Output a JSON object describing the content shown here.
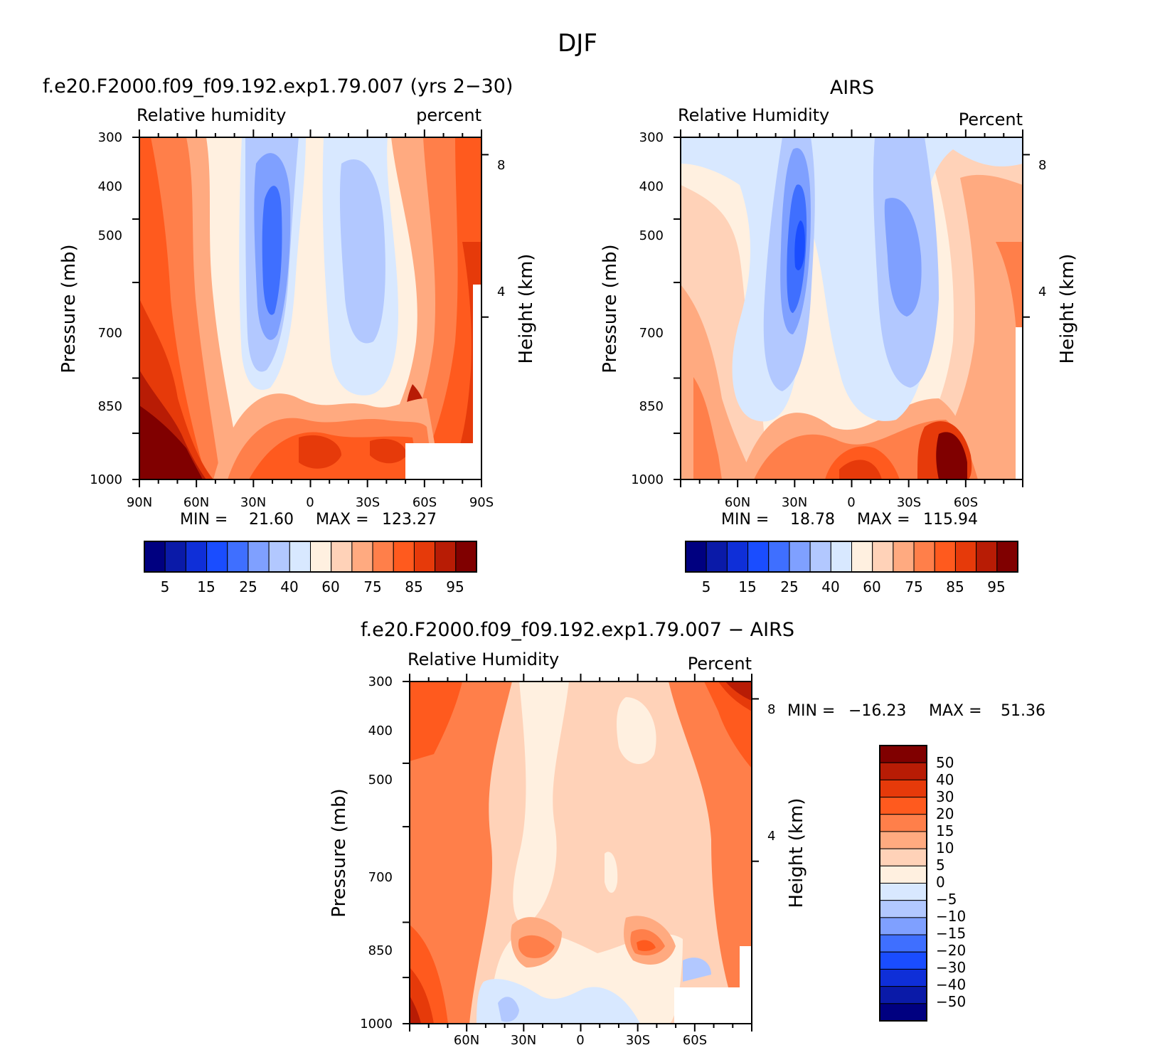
{
  "figure": {
    "title": "DJF",
    "colors": {
      "abs_levels": [
        "#000080",
        "#0a1aa8",
        "#0f2fd8",
        "#1a4dff",
        "#3f6fff",
        "#7fa0ff",
        "#b2c8ff",
        "#d8e8ff",
        "#fff0e0",
        "#ffd2b8",
        "#ffaa80",
        "#ff7f4a",
        "#ff5a1e",
        "#e63a0a",
        "#b81c05",
        "#800000"
      ],
      "diff_levels": [
        "#800000",
        "#b81c05",
        "#e63a0a",
        "#ff5a1e",
        "#ff7f4a",
        "#ffaa80",
        "#ffd2b8",
        "#fff0e0",
        "#d8e8ff",
        "#b2c8ff",
        "#7fa0ff",
        "#3f6fff",
        "#1a4dff",
        "#0f2fd8",
        "#0a1aa8",
        "#000080"
      ]
    }
  },
  "chart_data": [
    {
      "type": "heatmap",
      "title": "f.e20.F2000.f09_f09.192.exp1.79.007 (yrs 2−30)",
      "left_label": "Relative humidity",
      "right_label": "percent",
      "ylabel": "Pressure (mb)",
      "y2label": "Height (km)",
      "x_ticks": [
        "90N",
        "60N",
        "30N",
        "0",
        "30S",
        "60S",
        "90S"
      ],
      "y_ticks": [
        "300",
        "400",
        "500",
        "700",
        "850",
        "1000"
      ],
      "y2_ticks": [
        "8",
        "4"
      ],
      "stats": {
        "min_label": "MIN =",
        "min": "21.60",
        "max_label": "MAX =",
        "max": "123.27"
      },
      "colorbar_labels": [
        "5",
        "15",
        "25",
        "40",
        "60",
        "75",
        "85",
        "95"
      ],
      "ylim": [
        1000,
        300
      ],
      "xlim": [
        90,
        -90
      ]
    },
    {
      "type": "heatmap",
      "title": "AIRS",
      "left_label": "Relative Humidity",
      "right_label": "Percent",
      "ylabel": "Pressure (mb)",
      "y2label": "Height (km)",
      "x_ticks": [
        "60N",
        "30N",
        "0",
        "30S",
        "60S"
      ],
      "y_ticks": [
        "300",
        "400",
        "500",
        "700",
        "850",
        "1000"
      ],
      "y2_ticks": [
        "8",
        "4"
      ],
      "stats": {
        "min_label": "MIN =",
        "min": "18.78",
        "max_label": "MAX =",
        "max": "115.94"
      },
      "colorbar_labels": [
        "5",
        "15",
        "25",
        "40",
        "60",
        "75",
        "85",
        "95"
      ],
      "ylim": [
        1000,
        300
      ],
      "xlim": [
        90,
        -90
      ]
    },
    {
      "type": "heatmap",
      "title": "f.e20.F2000.f09_f09.192.exp1.79.007 − AIRS",
      "left_label": "Relative Humidity",
      "right_label": "Percent",
      "ylabel": "Pressure (mb)",
      "y2label": "Height (km)",
      "x_ticks": [
        "60N",
        "30N",
        "0",
        "30S",
        "60S"
      ],
      "y_ticks": [
        "300",
        "400",
        "500",
        "700",
        "850",
        "1000"
      ],
      "y2_ticks": [
        "8",
        "4"
      ],
      "stats": {
        "min_label": "MIN =",
        "min": "−16.23",
        "max_label": "MAX =",
        "max": "51.36"
      },
      "colorbar_labels": [
        "50",
        "40",
        "30",
        "20",
        "15",
        "10",
        "5",
        "0",
        "−5",
        "−10",
        "−15",
        "−20",
        "−30",
        "−40",
        "−50"
      ],
      "ylim": [
        1000,
        300
      ],
      "xlim": [
        90,
        -90
      ]
    }
  ]
}
